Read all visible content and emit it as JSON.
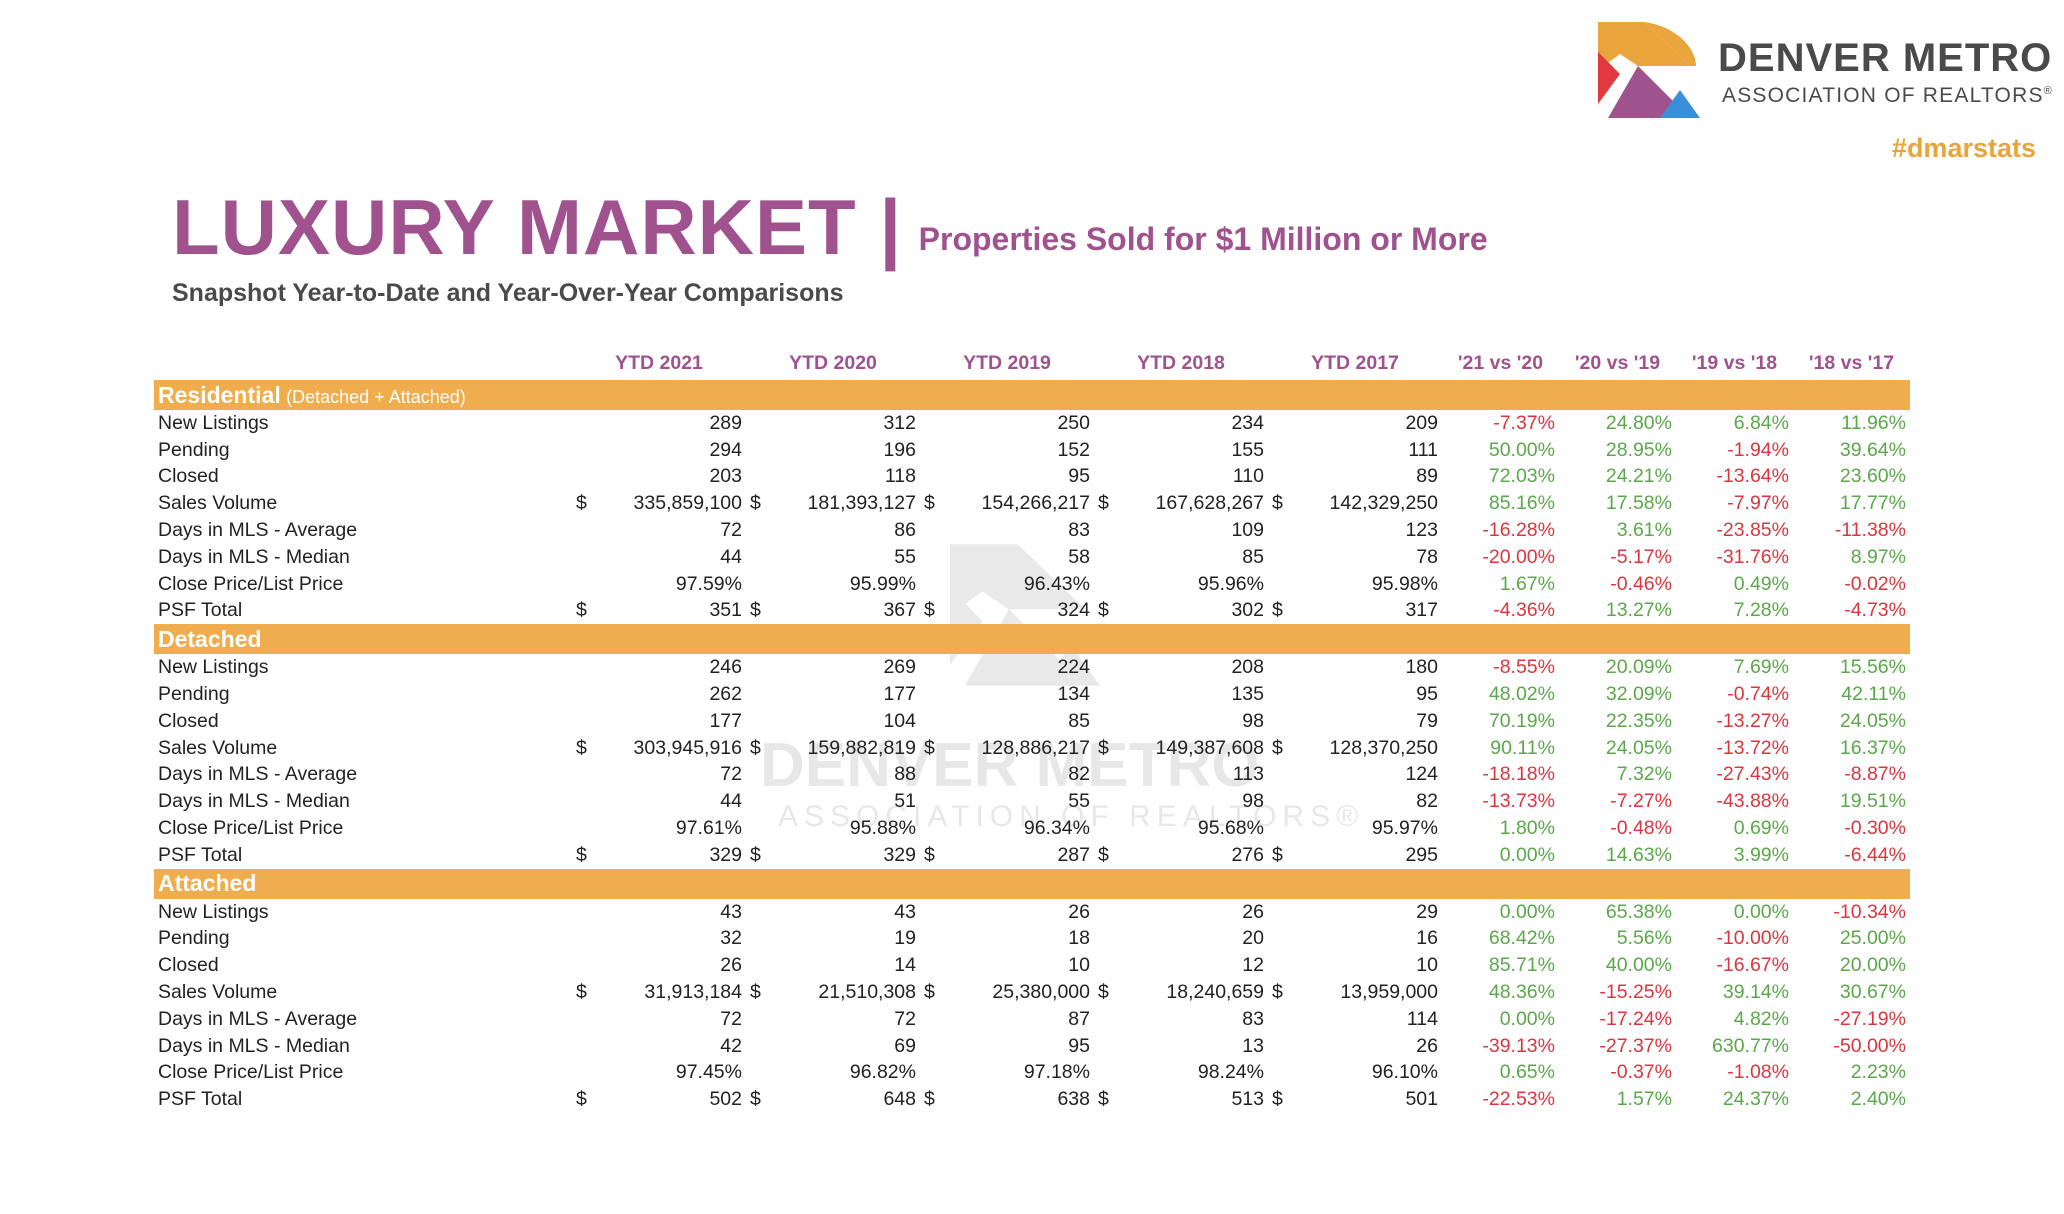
{
  "brand": {
    "name": "DENVER METRO",
    "subname": "ASSOCIATION OF REALTORS",
    "reg_mark": "®",
    "hashtag": "#dmarstats",
    "colors": {
      "orange": "#e9a43c",
      "purple": "#a0528f",
      "red": "#e03a3e",
      "blue": "#3a8fd9"
    }
  },
  "title": {
    "main": "LUXURY MARKET |",
    "sub": "Properties Sold for $1 Million or More",
    "subtitle": "Snapshot Year-to-Date and Year-Over-Year Comparisons"
  },
  "watermark": {
    "name": "DENVER METRO",
    "subname": "ASSOCIATION OF REALTORS®"
  },
  "columns": {
    "years": [
      "YTD 2021",
      "YTD 2020",
      "YTD 2019",
      "YTD 2018",
      "YTD 2017"
    ],
    "changes": [
      "'21 vs '20",
      "'20 vs '19",
      "'19 vs '18",
      "'18 vs '17"
    ]
  },
  "sections": [
    {
      "name": "Residential",
      "note": "(Detached + Attached)",
      "rows": [
        {
          "label": "New Listings",
          "currency": false,
          "values": [
            "289",
            "312",
            "250",
            "234",
            "209"
          ],
          "changes": [
            "-7.37%",
            "24.80%",
            "6.84%",
            "11.96%"
          ]
        },
        {
          "label": "Pending",
          "currency": false,
          "values": [
            "294",
            "196",
            "152",
            "155",
            "111"
          ],
          "changes": [
            "50.00%",
            "28.95%",
            "-1.94%",
            "39.64%"
          ]
        },
        {
          "label": "Closed",
          "currency": false,
          "values": [
            "203",
            "118",
            "95",
            "110",
            "89"
          ],
          "changes": [
            "72.03%",
            "24.21%",
            "-13.64%",
            "23.60%"
          ]
        },
        {
          "label": "Sales Volume",
          "currency": true,
          "values": [
            "335,859,100",
            "181,393,127",
            "154,266,217",
            "167,628,267",
            "142,329,250"
          ],
          "changes": [
            "85.16%",
            "17.58%",
            "-7.97%",
            "17.77%"
          ]
        },
        {
          "label": "Days in MLS - Average",
          "currency": false,
          "values": [
            "72",
            "86",
            "83",
            "109",
            "123"
          ],
          "changes": [
            "-16.28%",
            "3.61%",
            "-23.85%",
            "-11.38%"
          ]
        },
        {
          "label": "Days in MLS - Median",
          "currency": false,
          "values": [
            "44",
            "55",
            "58",
            "85",
            "78"
          ],
          "changes": [
            "-20.00%",
            "-5.17%",
            "-31.76%",
            "8.97%"
          ]
        },
        {
          "label": "Close Price/List Price",
          "currency": false,
          "values": [
            "97.59%",
            "95.99%",
            "96.43%",
            "95.96%",
            "95.98%"
          ],
          "changes": [
            "1.67%",
            "-0.46%",
            "0.49%",
            "-0.02%"
          ]
        },
        {
          "label": "PSF Total",
          "currency": true,
          "values": [
            "351",
            "367",
            "324",
            "302",
            "317"
          ],
          "changes": [
            "-4.36%",
            "13.27%",
            "7.28%",
            "-4.73%"
          ]
        }
      ]
    },
    {
      "name": "Detached",
      "note": "",
      "rows": [
        {
          "label": "New Listings",
          "currency": false,
          "values": [
            "246",
            "269",
            "224",
            "208",
            "180"
          ],
          "changes": [
            "-8.55%",
            "20.09%",
            "7.69%",
            "15.56%"
          ]
        },
        {
          "label": "Pending",
          "currency": false,
          "values": [
            "262",
            "177",
            "134",
            "135",
            "95"
          ],
          "changes": [
            "48.02%",
            "32.09%",
            "-0.74%",
            "42.11%"
          ]
        },
        {
          "label": "Closed",
          "currency": false,
          "values": [
            "177",
            "104",
            "85",
            "98",
            "79"
          ],
          "changes": [
            "70.19%",
            "22.35%",
            "-13.27%",
            "24.05%"
          ]
        },
        {
          "label": "Sales Volume",
          "currency": true,
          "values": [
            "303,945,916",
            "159,882,819",
            "128,886,217",
            "149,387,608",
            "128,370,250"
          ],
          "changes": [
            "90.11%",
            "24.05%",
            "-13.72%",
            "16.37%"
          ]
        },
        {
          "label": "Days in MLS - Average",
          "currency": false,
          "values": [
            "72",
            "88",
            "82",
            "113",
            "124"
          ],
          "changes": [
            "-18.18%",
            "7.32%",
            "-27.43%",
            "-8.87%"
          ]
        },
        {
          "label": "Days in MLS - Median",
          "currency": false,
          "values": [
            "44",
            "51",
            "55",
            "98",
            "82"
          ],
          "changes": [
            "-13.73%",
            "-7.27%",
            "-43.88%",
            "19.51%"
          ]
        },
        {
          "label": "Close Price/List Price",
          "currency": false,
          "values": [
            "97.61%",
            "95.88%",
            "96.34%",
            "95.68%",
            "95.97%"
          ],
          "changes": [
            "1.80%",
            "-0.48%",
            "0.69%",
            "-0.30%"
          ]
        },
        {
          "label": "PSF Total",
          "currency": true,
          "values": [
            "329",
            "329",
            "287",
            "276",
            "295"
          ],
          "changes": [
            "0.00%",
            "14.63%",
            "3.99%",
            "-6.44%"
          ]
        }
      ]
    },
    {
      "name": "Attached",
      "note": "",
      "rows": [
        {
          "label": "New Listings",
          "currency": false,
          "values": [
            "43",
            "43",
            "26",
            "26",
            "29"
          ],
          "changes": [
            "0.00%",
            "65.38%",
            "0.00%",
            "-10.34%"
          ]
        },
        {
          "label": "Pending",
          "currency": false,
          "values": [
            "32",
            "19",
            "18",
            "20",
            "16"
          ],
          "changes": [
            "68.42%",
            "5.56%",
            "-10.00%",
            "25.00%"
          ]
        },
        {
          "label": "Closed",
          "currency": false,
          "values": [
            "26",
            "14",
            "10",
            "12",
            "10"
          ],
          "changes": [
            "85.71%",
            "40.00%",
            "-16.67%",
            "20.00%"
          ]
        },
        {
          "label": "Sales Volume",
          "currency": true,
          "values": [
            "31,913,184",
            "21,510,308",
            "25,380,000",
            "18,240,659",
            "13,959,000"
          ],
          "changes": [
            "48.36%",
            "-15.25%",
            "39.14%",
            "30.67%"
          ]
        },
        {
          "label": "Days in MLS - Average",
          "currency": false,
          "values": [
            "72",
            "72",
            "87",
            "83",
            "114"
          ],
          "changes": [
            "0.00%",
            "-17.24%",
            "4.82%",
            "-27.19%"
          ]
        },
        {
          "label": "Days in MLS - Median",
          "currency": false,
          "values": [
            "42",
            "69",
            "95",
            "13",
            "26"
          ],
          "changes": [
            "-39.13%",
            "-27.37%",
            "630.77%",
            "-50.00%"
          ]
        },
        {
          "label": "Close Price/List Price",
          "currency": false,
          "values": [
            "97.45%",
            "96.82%",
            "97.18%",
            "98.24%",
            "96.10%"
          ],
          "changes": [
            "0.65%",
            "-0.37%",
            "-1.08%",
            "2.23%"
          ]
        },
        {
          "label": "PSF Total",
          "currency": true,
          "values": [
            "502",
            "648",
            "638",
            "513",
            "501"
          ],
          "changes": [
            "-22.53%",
            "1.57%",
            "24.37%",
            "2.40%"
          ]
        }
      ]
    }
  ],
  "currency_symbol": "$"
}
